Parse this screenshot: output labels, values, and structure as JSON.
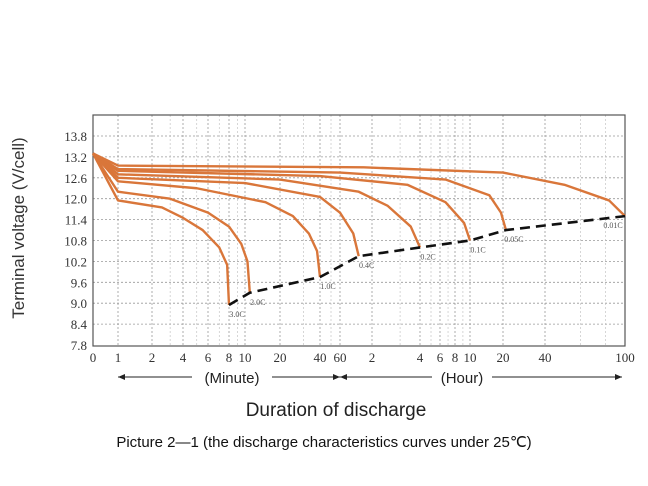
{
  "chart_data": {
    "type": "line",
    "title": "",
    "xlabel": "Duration of discharge",
    "ylabel": "Terminal voltage (V/cell)",
    "x_units": {
      "minute_label": "(Minute)",
      "hour_label": "(Hour)"
    },
    "yticks": [
      "13.8",
      "13.2",
      "12.6",
      "12.0",
      "11.4",
      "10.8",
      "10.2",
      "9.6",
      "9.0",
      "8.4",
      "7.8"
    ],
    "ylim": [
      7.8,
      13.8
    ],
    "xticks": [
      {
        "label": "0",
        "minutes": 0
      },
      {
        "label": "1",
        "minutes": 1
      },
      {
        "label": "2",
        "minutes": 2
      },
      {
        "label": "4",
        "minutes": 4
      },
      {
        "label": "6",
        "minutes": 6
      },
      {
        "label": "8",
        "minutes": 8
      },
      {
        "label": "10",
        "minutes": 10
      },
      {
        "label": "20",
        "minutes": 20
      },
      {
        "label": "40",
        "minutes": 40
      },
      {
        "label": "60",
        "minutes": 60
      },
      {
        "label": "2",
        "minutes": 120
      },
      {
        "label": "4",
        "minutes": 240
      },
      {
        "label": "6",
        "minutes": 360
      },
      {
        "label": "8",
        "minutes": 480
      },
      {
        "label": "10",
        "minutes": 600
      },
      {
        "label": "20",
        "minutes": 1200
      },
      {
        "label": "40",
        "minutes": 2400
      },
      {
        "label": "100",
        "minutes": 6000
      }
    ],
    "grid": true,
    "series": [
      {
        "name": "3.0C",
        "points": [
          [
            0,
            13.3
          ],
          [
            1,
            11.95
          ],
          [
            2.5,
            11.75
          ],
          [
            4,
            11.45
          ],
          [
            5.5,
            11.1
          ],
          [
            7,
            10.6
          ],
          [
            7.8,
            10.1
          ],
          [
            8,
            8.95
          ]
        ]
      },
      {
        "name": "2.0C",
        "points": [
          [
            0,
            13.3
          ],
          [
            1,
            12.2
          ],
          [
            3,
            12.0
          ],
          [
            6,
            11.6
          ],
          [
            8,
            11.2
          ],
          [
            9.5,
            10.7
          ],
          [
            10.5,
            10.2
          ],
          [
            11,
            9.3
          ]
        ]
      },
      {
        "name": "1.0C",
        "points": [
          [
            0,
            13.3
          ],
          [
            1,
            12.5
          ],
          [
            5,
            12.3
          ],
          [
            15,
            11.9
          ],
          [
            25,
            11.5
          ],
          [
            33,
            11.0
          ],
          [
            38,
            10.5
          ],
          [
            40,
            9.75
          ]
        ]
      },
      {
        "name": "0.4C",
        "points": [
          [
            0,
            13.3
          ],
          [
            1,
            12.6
          ],
          [
            10,
            12.45
          ],
          [
            40,
            12.05
          ],
          [
            60,
            11.6
          ],
          [
            80,
            11.0
          ],
          [
            90,
            10.35
          ]
        ]
      },
      {
        "name": "0.2C",
        "points": [
          [
            0,
            13.3
          ],
          [
            1,
            12.7
          ],
          [
            20,
            12.55
          ],
          [
            90,
            12.2
          ],
          [
            150,
            11.8
          ],
          [
            210,
            11.2
          ],
          [
            240,
            10.6
          ]
        ]
      },
      {
        "name": "0.1C",
        "points": [
          [
            0,
            13.3
          ],
          [
            1,
            12.8
          ],
          [
            40,
            12.65
          ],
          [
            200,
            12.4
          ],
          [
            400,
            11.9
          ],
          [
            550,
            11.3
          ],
          [
            600,
            10.8
          ]
        ]
      },
      {
        "name": "0.05C",
        "points": [
          [
            0,
            13.3
          ],
          [
            1,
            12.85
          ],
          [
            60,
            12.75
          ],
          [
            400,
            12.55
          ],
          [
            900,
            12.1
          ],
          [
            1150,
            11.6
          ],
          [
            1260,
            11.1
          ]
        ]
      },
      {
        "name": "0.01C",
        "points": [
          [
            0,
            13.3
          ],
          [
            1,
            12.95
          ],
          [
            100,
            12.9
          ],
          [
            1200,
            12.75
          ],
          [
            3000,
            12.4
          ],
          [
            5000,
            11.95
          ],
          [
            6000,
            11.5
          ]
        ]
      }
    ],
    "end_voltage_line": [
      [
        8,
        8.95
      ],
      [
        11,
        9.3
      ],
      [
        40,
        9.75
      ],
      [
        90,
        10.35
      ],
      [
        240,
        10.6
      ],
      [
        600,
        10.8
      ],
      [
        1260,
        11.1
      ],
      [
        6000,
        11.5
      ]
    ],
    "colors": {
      "curve": "#d9763a",
      "dash": "#111111",
      "grid": "#999999"
    }
  },
  "caption": "Picture 2—1 (the discharge characteristics curves under 25℃)"
}
